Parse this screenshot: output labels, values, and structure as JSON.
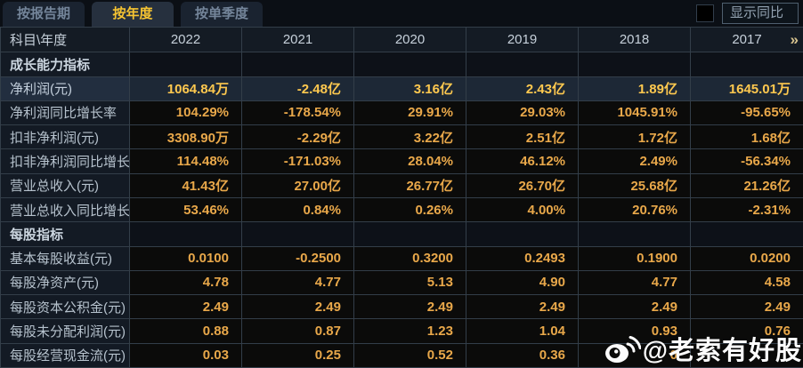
{
  "tabs": [
    {
      "label": "按报告期",
      "active": false
    },
    {
      "label": "按年度",
      "active": true
    },
    {
      "label": "按单季度",
      "active": false
    }
  ],
  "controls": {
    "show_yoy_label": "显示同比",
    "checkbox_checked": false
  },
  "table": {
    "corner_header": "科目\\年度",
    "year_columns": [
      "2022",
      "2021",
      "2020",
      "2019",
      "2018",
      "2017"
    ],
    "more_icon": "»",
    "rows": [
      {
        "type": "section",
        "label": "成长能力指标",
        "values": [
          "",
          "",
          "",
          "",
          "",
          ""
        ]
      },
      {
        "type": "highlight",
        "label": "净利润(元)",
        "values": [
          "1064.84万",
          "-2.48亿",
          "3.16亿",
          "2.43亿",
          "1.89亿",
          "1645.01万"
        ]
      },
      {
        "type": "data",
        "label": "净利润同比增长率",
        "values": [
          "104.29%",
          "-178.54%",
          "29.91%",
          "29.03%",
          "1045.91%",
          "-95.65%"
        ]
      },
      {
        "type": "data",
        "label": "扣非净利润(元)",
        "values": [
          "3308.90万",
          "-2.29亿",
          "3.22亿",
          "2.51亿",
          "1.72亿",
          "1.68亿"
        ]
      },
      {
        "type": "data",
        "label": "扣非净利润同比增长率",
        "values": [
          "114.48%",
          "-171.03%",
          "28.04%",
          "46.12%",
          "2.49%",
          "-56.34%"
        ]
      },
      {
        "type": "data",
        "label": "营业总收入(元)",
        "values": [
          "41.43亿",
          "27.00亿",
          "26.77亿",
          "26.70亿",
          "25.68亿",
          "21.26亿"
        ]
      },
      {
        "type": "data",
        "label": "营业总收入同比增长率",
        "values": [
          "53.46%",
          "0.84%",
          "0.26%",
          "4.00%",
          "20.76%",
          "-2.31%"
        ]
      },
      {
        "type": "section",
        "label": "每股指标",
        "values": [
          "",
          "",
          "",
          "",
          "",
          ""
        ]
      },
      {
        "type": "data",
        "label": "基本每股收益(元)",
        "values": [
          "0.0100",
          "-0.2500",
          "0.3200",
          "0.2493",
          "0.1900",
          "0.0200"
        ]
      },
      {
        "type": "data",
        "label": "每股净资产(元)",
        "values": [
          "4.78",
          "4.77",
          "5.13",
          "4.90",
          "4.77",
          "4.58"
        ]
      },
      {
        "type": "data",
        "label": "每股资本公积金(元)",
        "values": [
          "2.49",
          "2.49",
          "2.49",
          "2.49",
          "2.49",
          "2.49"
        ]
      },
      {
        "type": "data",
        "label": "每股未分配利润(元)",
        "values": [
          "0.88",
          "0.87",
          "1.23",
          "1.04",
          "0.93",
          "0.76"
        ]
      },
      {
        "type": "data",
        "label": "每股经营现金流(元)",
        "values": [
          "0.03",
          "0.25",
          "0.52",
          "0.36",
          "0",
          ""
        ]
      }
    ]
  },
  "watermark": {
    "text": "@老索有好股",
    "icon": "weibo-icon"
  },
  "colors": {
    "tab_active_text": "#f6c432",
    "value_gold": "#e9a84a",
    "highlight_value_gold": "#ffc94f",
    "highlight_row_bg": "#1d2836",
    "label_col_bg": "#131a24",
    "header_row_bg": "#141b24",
    "cell_border": "#333e49"
  }
}
